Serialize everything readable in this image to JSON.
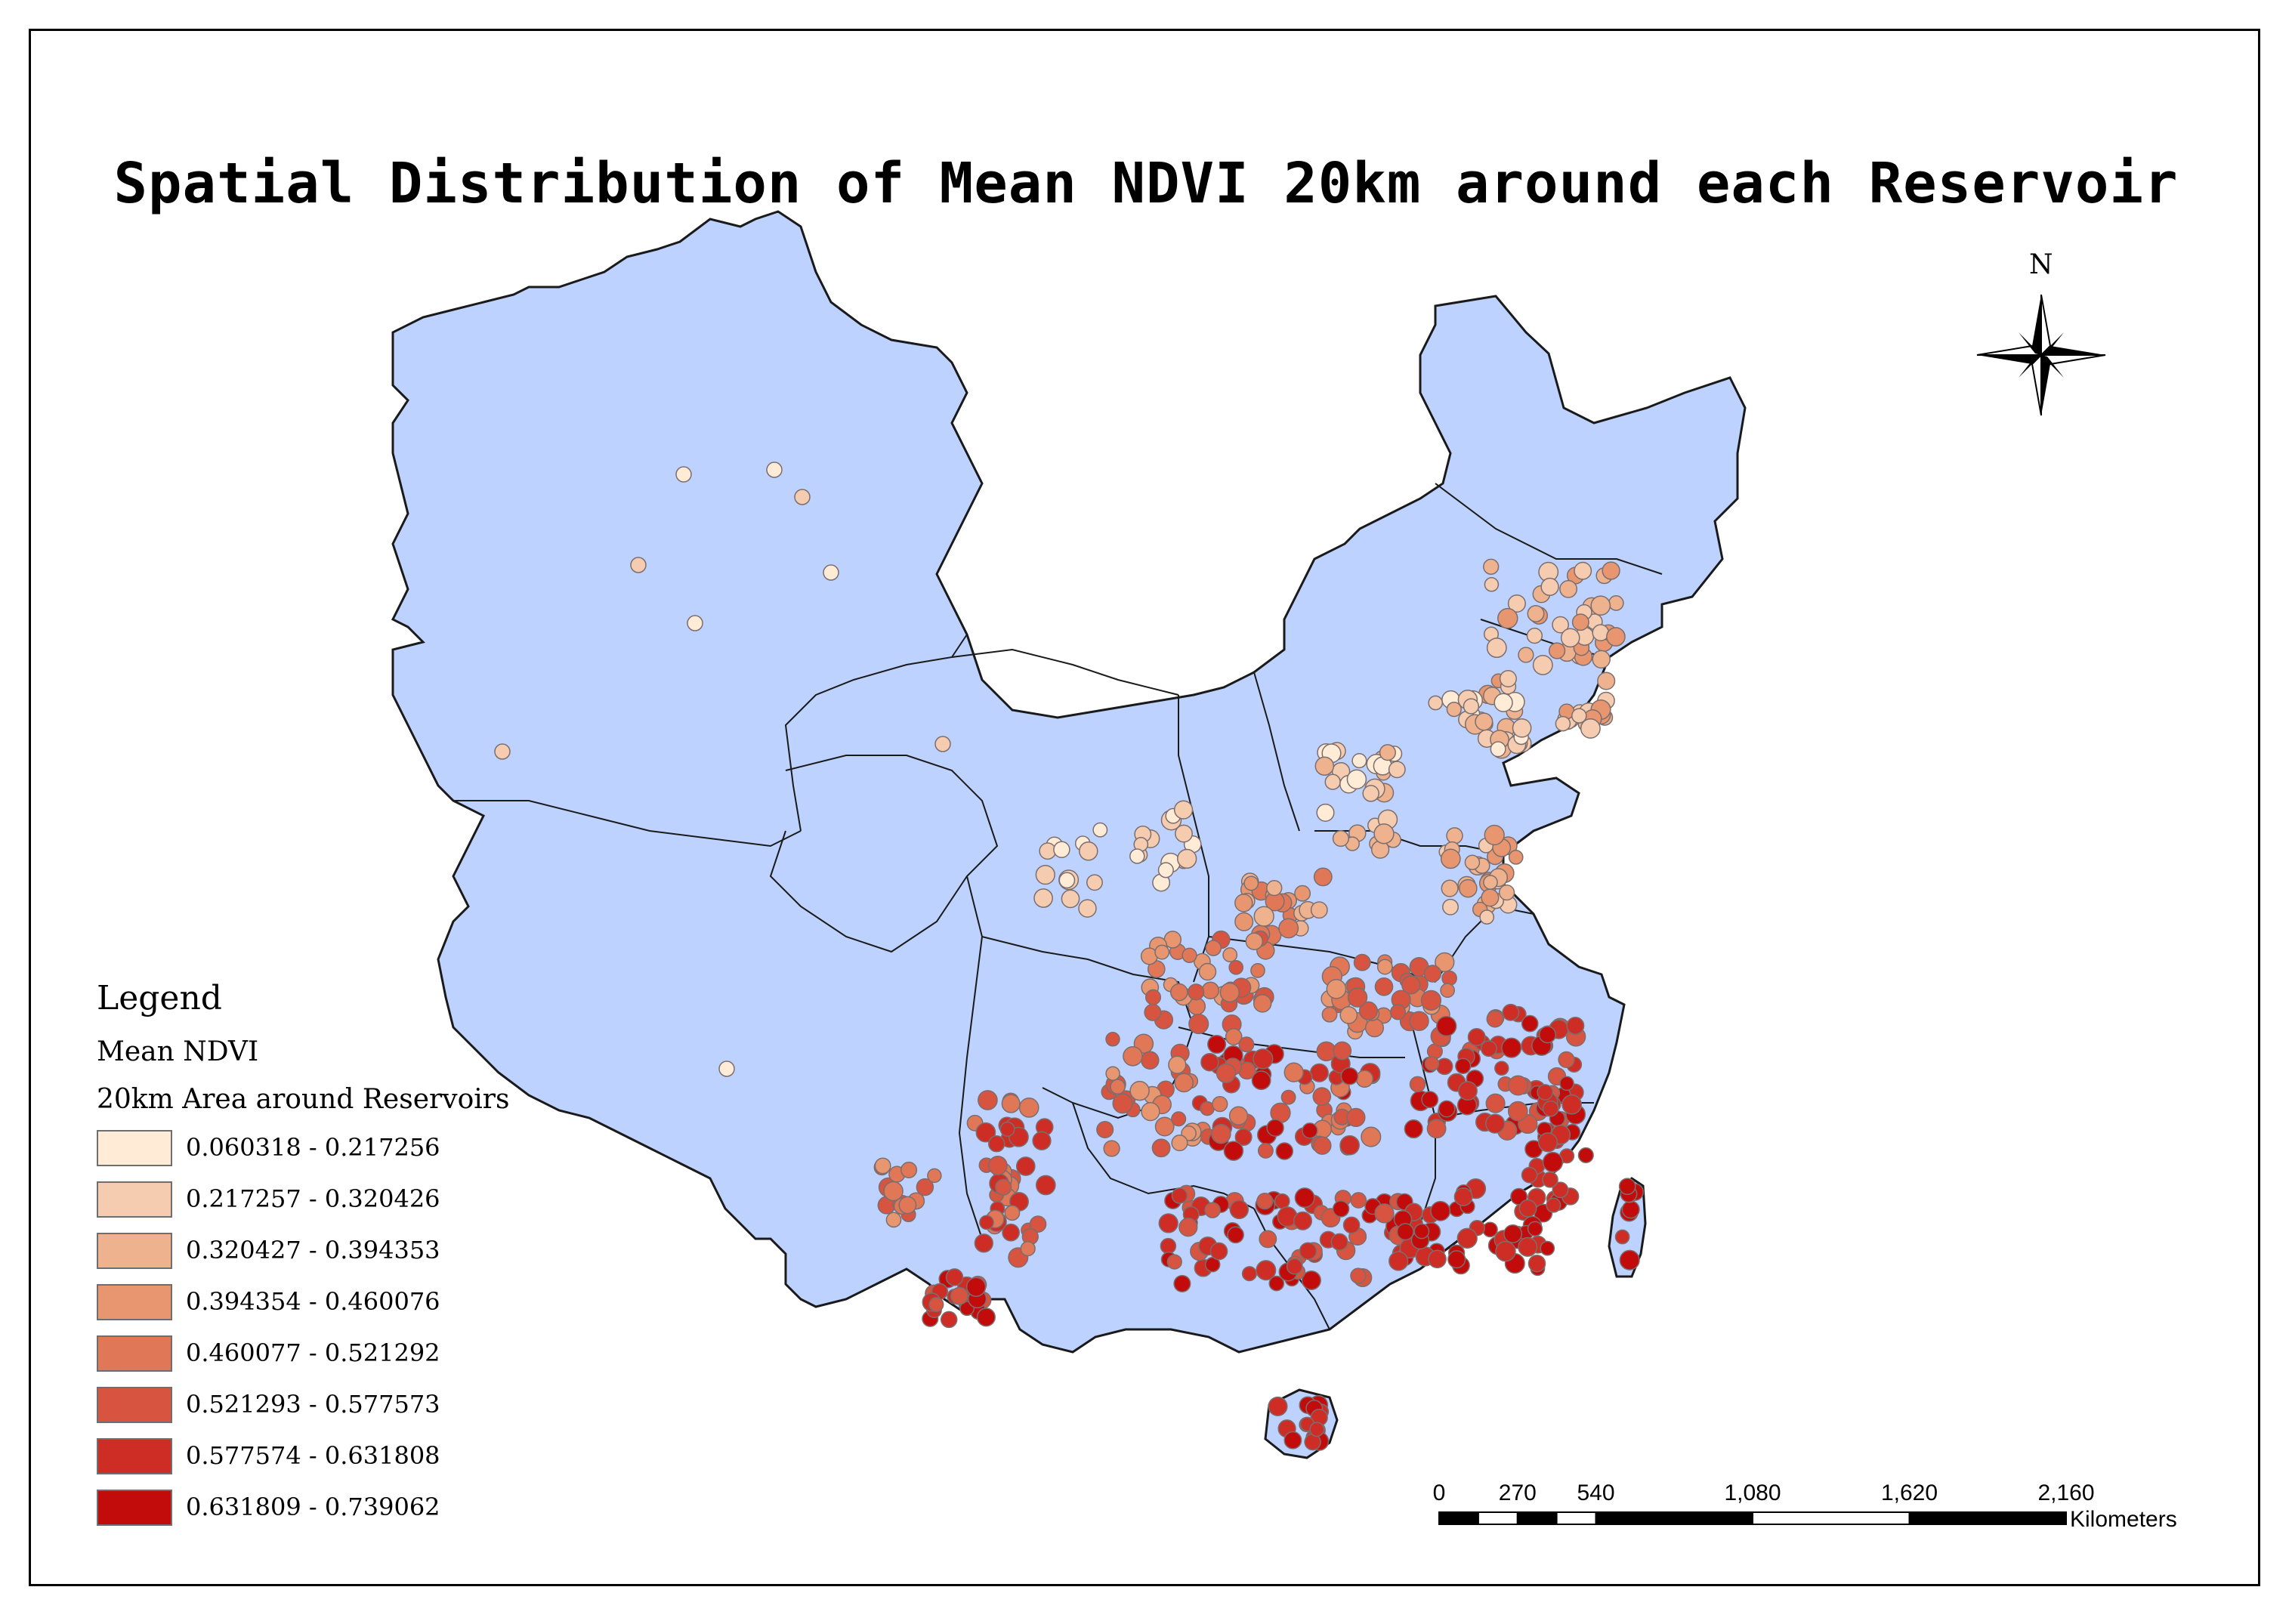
{
  "title": "Spatial Distribution of Mean NDVI 20km around each Reservoir",
  "colors": {
    "country_fill": "#bed2ff",
    "border": "#1a1a1a",
    "background": "#ffffff"
  },
  "legend": {
    "title": "Legend",
    "field": "Mean NDVI",
    "layer": "20km Area around Reservoirs",
    "classes": [
      {
        "label": "0.060318 - 0.217256",
        "color": "#ffebd6"
      },
      {
        "label": "0.217257 - 0.320426",
        "color": "#f5ccb0"
      },
      {
        "label": "0.320427 - 0.394353",
        "color": "#efb28e"
      },
      {
        "label": "0.394354 - 0.460076",
        "color": "#e8966f"
      },
      {
        "label": "0.460077 - 0.521292",
        "color": "#e07858"
      },
      {
        "label": "0.521293 - 0.577573",
        "color": "#d75440"
      },
      {
        "label": "0.577574 - 0.631808",
        "color": "#cd2d25"
      },
      {
        "label": "0.631809 - 0.739062",
        "color": "#c20b0b"
      }
    ]
  },
  "north_arrow": {
    "label": "N",
    "icon": "compass-rose-icon"
  },
  "scale_bar": {
    "ticks": [
      "0",
      "270",
      "540",
      "1,080",
      "1,620",
      "2,160"
    ],
    "tick_values": [
      0,
      270,
      540,
      1080,
      1620,
      2160
    ],
    "unit": "Kilometers"
  }
}
